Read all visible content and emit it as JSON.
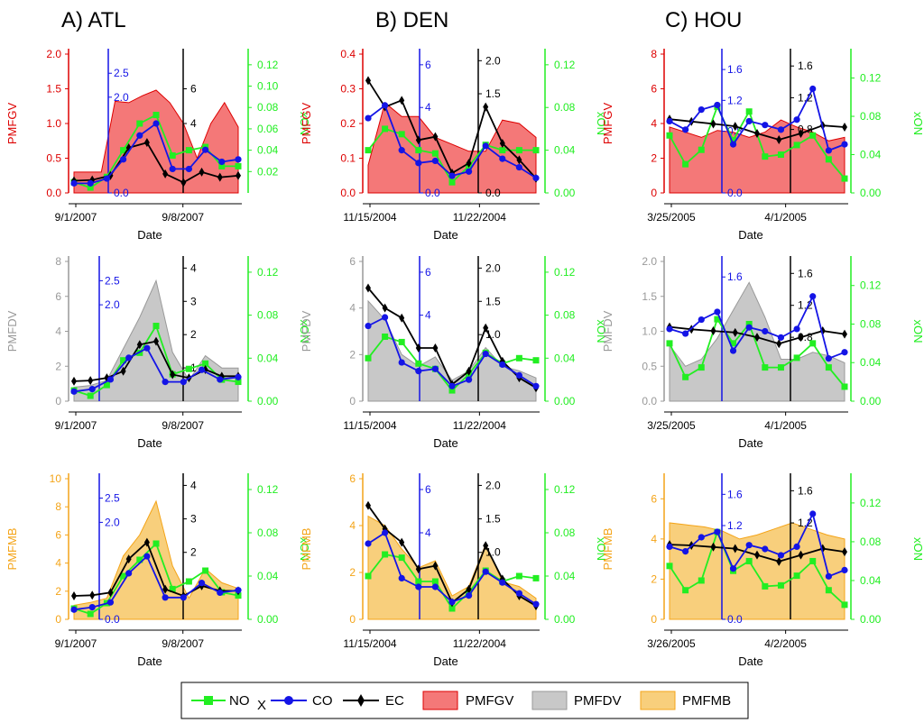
{
  "columns": [
    "A) ATL",
    "B) DEN",
    "C) HOU"
  ],
  "colors": {
    "nox": "#22ee22",
    "co": "#1414e6",
    "ec": "#000000",
    "pmfgv_fill": "#f47878",
    "pmfgv_line": "#dd0000",
    "pmfdv_fill": "#c8c8c8",
    "pmfdv_line": "#999999",
    "pmfmb_fill": "#f8cf7c",
    "pmfmb_line": "#f4a418"
  },
  "legend": {
    "nox": "NO",
    "nox_sub": "X",
    "co": "CO",
    "ec": "EC",
    "pmfgv": "PMFGV",
    "pmfdv": "PMFDV",
    "pmfmb": "PMFMB"
  },
  "chart_data": [
    {
      "type": "area",
      "panel": "ATL-PMFGV",
      "xlabel": "Date",
      "xticks": [
        "9/1/2007",
        "9/8/2007"
      ],
      "xlim": [
        0,
        10
      ],
      "series_name": "PMFGV",
      "ylabel": "PMFGV",
      "ylim": [
        0,
        2.0
      ],
      "yticks": [
        "0.0",
        "0.5",
        "1.0",
        "1.5",
        "2.0"
      ],
      "area": [
        0.3,
        0.3,
        0.3,
        1.32,
        1.3,
        1.4,
        1.48,
        1.3,
        1.0,
        0.5,
        1.0,
        1.3,
        0.95
      ],
      "co_axis": {
        "ylim": [
          0,
          2.9
        ],
        "yticks": [
          "0.0",
          "2.0",
          "2.5"
        ]
      },
      "ec_axis": {
        "ylim": [
          0,
          8
        ],
        "yticks": [
          "4",
          "6"
        ]
      },
      "nox_axis": {
        "ylim": [
          0,
          0.13
        ],
        "yticks": [
          "0.02",
          "0.04",
          "0.06",
          "0.08",
          "0.10",
          "0.12"
        ]
      },
      "ylabel_right": "xON",
      "co": [
        0.2,
        0.2,
        0.3,
        0.7,
        1.2,
        1.45,
        0.5,
        0.5,
        0.9,
        0.65,
        0.7
      ],
      "ec": [
        0.7,
        0.75,
        1.0,
        2.6,
        2.9,
        1.1,
        0.6,
        1.2,
        0.9,
        1.0
      ],
      "nox": [
        0.01,
        0.005,
        0.015,
        0.04,
        0.065,
        0.073,
        0.035,
        0.04,
        0.043,
        0.025,
        0.025
      ]
    },
    {
      "type": "area",
      "panel": "DEN-PMFGV",
      "xlabel": "Date",
      "xticks": [
        "11/15/2004",
        "11/22/2004"
      ],
      "xlim": [
        0,
        10
      ],
      "series_name": "PMFGV",
      "ylabel": "PMFGV",
      "ylim": [
        0,
        0.4
      ],
      "yticks": [
        "0.0",
        "0.1",
        "0.2",
        "0.3",
        "0.4"
      ],
      "area": [
        0.08,
        0.26,
        0.22,
        0.22,
        0.16,
        0.14,
        0.12,
        0.12,
        0.21,
        0.2,
        0.16
      ],
      "co_axis": {
        "ylim": [
          0,
          6.5
        ],
        "yticks": [
          "0.0",
          "4",
          "6"
        ]
      },
      "ec_axis": {
        "ylim": [
          0,
          2.1
        ],
        "yticks": [
          "0.0",
          "1.5",
          "2.0"
        ]
      },
      "nox_axis": {
        "ylim": [
          0,
          0.13
        ],
        "yticks": [
          "0.00",
          "0.04",
          "0.08",
          "0.12"
        ]
      },
      "ylabel_right": "xON",
      "co": [
        3.5,
        4.1,
        2.0,
        1.4,
        1.5,
        0.8,
        1.0,
        2.2,
        1.6,
        1.2,
        0.7
      ],
      "ec": [
        1.7,
        1.3,
        1.4,
        0.8,
        0.85,
        0.3,
        0.45,
        1.3,
        0.75,
        0.5,
        0.22
      ],
      "nox": [
        0.04,
        0.06,
        0.055,
        0.04,
        0.037,
        0.01,
        0.025,
        0.045,
        0.04,
        0.04,
        0.04
      ]
    },
    {
      "type": "area",
      "panel": "HOU-PMFGV",
      "xlabel": "Date",
      "xticks": [
        "3/25/2005",
        "4/1/2005"
      ],
      "xlim": [
        0,
        10
      ],
      "series_name": "PMFGV",
      "ylabel": "PMFGV",
      "ylim": [
        0,
        8
      ],
      "yticks": [
        "0",
        "2",
        "4",
        "6",
        "8"
      ],
      "area": [
        3.8,
        3.5,
        3.2,
        3.6,
        3.5,
        3.2,
        3.5,
        4.2,
        3.8,
        3.5,
        3.0,
        3.2
      ],
      "co_axis": {
        "ylim": [
          0,
          1.8
        ],
        "yticks": [
          "0.0",
          "0.8",
          "1.2",
          "1.6"
        ]
      },
      "ec_axis": {
        "ylim": [
          0,
          1.75
        ],
        "yticks": [
          "0.8",
          "1.2",
          "1.6"
        ]
      },
      "nox_axis": {
        "ylim": [
          0,
          0.145
        ],
        "yticks": [
          "0.00",
          "0.04",
          "0.08",
          "0.12"
        ]
      },
      "ylabel_right": "xON",
      "co": [
        0.93,
        0.82,
        1.08,
        1.14,
        0.63,
        0.93,
        0.88,
        0.82,
        0.95,
        1.35,
        0.55,
        0.63
      ],
      "ec": [
        0.93,
        0.9,
        0.87,
        0.84,
        0.75,
        0.67,
        0.75,
        0.85,
        0.83
      ],
      "nox": [
        0.06,
        0.03,
        0.045,
        0.09,
        0.055,
        0.085,
        0.038,
        0.04,
        0.05,
        0.06,
        0.035,
        0.015
      ]
    },
    {
      "type": "area",
      "panel": "ATL-PMFDV",
      "xlabel": "Date",
      "xticks": [
        "9/1/2007",
        "9/8/2007"
      ],
      "xlim": [
        0,
        10
      ],
      "series_name": "PMFDV",
      "ylabel": "PMFDV",
      "ylim": [
        0,
        8
      ],
      "yticks": [
        "0",
        "2",
        "4",
        "6",
        "8"
      ],
      "area": [
        0.8,
        0.9,
        1.2,
        3.0,
        4.8,
        6.9,
        2.8,
        1.2,
        2.6,
        1.9,
        1.9
      ],
      "co_axis": {
        "ylim": [
          0,
          2.9
        ],
        "yticks": [
          "2.0",
          "2.5"
        ]
      },
      "ec_axis": {
        "ylim": [
          0,
          4.2
        ],
        "yticks": [
          "1",
          "2",
          "3",
          "4"
        ]
      },
      "nox_axis": {
        "ylim": [
          0,
          0.13
        ],
        "yticks": [
          "0.00",
          "0.04",
          "0.08",
          "0.12"
        ]
      },
      "ylabel_right": "xON",
      "co": [
        0.2,
        0.25,
        0.45,
        0.9,
        1.1,
        0.4,
        0.4,
        0.65,
        0.45,
        0.5
      ],
      "ec": [
        0.6,
        0.62,
        0.7,
        0.9,
        1.7,
        1.8,
        0.8,
        0.7,
        0.95,
        0.75,
        0.75
      ],
      "nox": [
        0.01,
        0.005,
        0.015,
        0.038,
        0.045,
        0.07,
        0.025,
        0.03,
        0.035,
        0.02,
        0.018
      ]
    },
    {
      "type": "area",
      "panel": "DEN-PMFDV",
      "xlabel": "Date",
      "xticks": [
        "11/15/2004",
        "11/22/2004"
      ],
      "xlim": [
        0,
        10
      ],
      "series_name": "PMFDV",
      "ylabel": "PMFDV",
      "ylim": [
        0,
        6
      ],
      "yticks": [
        "0",
        "2",
        "4",
        "6"
      ],
      "area": [
        4.3,
        3.5,
        2.0,
        1.5,
        1.9,
        0.9,
        1.3,
        2.3,
        1.5,
        1.3,
        1.0
      ],
      "co_axis": {
        "ylim": [
          0,
          6.5
        ],
        "yticks": [
          "4",
          "6"
        ]
      },
      "ec_axis": {
        "ylim": [
          0,
          2.1
        ],
        "yticks": [
          "1.0",
          "1.5",
          "2.0"
        ]
      },
      "nox_axis": {
        "ylim": [
          0,
          0.13
        ],
        "yticks": [
          "0.00",
          "0.04",
          "0.08",
          "0.12"
        ]
      },
      "ylabel_right": "xON",
      "co": [
        3.5,
        3.9,
        1.8,
        1.4,
        1.5,
        0.7,
        1.0,
        2.2,
        1.7,
        1.2,
        0.7
      ],
      "ec": [
        1.7,
        1.4,
        1.25,
        0.8,
        0.8,
        0.25,
        0.45,
        1.1,
        0.6,
        0.35,
        0.2
      ],
      "nox": [
        0.04,
        0.06,
        0.055,
        0.035,
        0.03,
        0.01,
        0.025,
        0.045,
        0.035,
        0.04,
        0.038
      ]
    },
    {
      "type": "area",
      "panel": "HOU-PMFDV",
      "xlabel": "Date",
      "xticks": [
        "3/25/2005",
        "4/1/2005"
      ],
      "xlim": [
        0,
        10
      ],
      "series_name": "PMFDV",
      "ylabel": "PMFDV",
      "ylim": [
        0,
        2.0
      ],
      "yticks": [
        "0.0",
        "0.5",
        "1.0",
        "1.5",
        "2.0"
      ],
      "area": [
        0.8,
        0.5,
        0.6,
        0.9,
        1.3,
        1.7,
        1.2,
        0.6,
        0.6,
        0.7,
        0.65,
        0.55
      ],
      "co_axis": {
        "ylim": [
          0,
          1.8
        ],
        "yticks": [
          "1.6"
        ]
      },
      "ec_axis": {
        "ylim": [
          0,
          1.75
        ],
        "yticks": [
          "0.8",
          "1.2",
          "1.6"
        ]
      },
      "nox_axis": {
        "ylim": [
          0,
          0.145
        ],
        "yticks": [
          "0.00",
          "0.04",
          "0.08",
          "0.12"
        ]
      },
      "ylabel_right": "xON",
      "co": [
        0.93,
        0.87,
        1.05,
        1.15,
        0.65,
        0.95,
        0.9,
        0.82,
        0.93,
        1.35,
        0.55,
        0.63
      ],
      "ec": [
        0.93,
        0.9,
        0.88,
        0.86,
        0.8,
        0.72,
        0.8,
        0.88,
        0.84
      ],
      "nox": [
        0.06,
        0.025,
        0.035,
        0.085,
        0.06,
        0.08,
        0.035,
        0.035,
        0.045,
        0.06,
        0.035,
        0.015
      ]
    },
    {
      "type": "area",
      "panel": "ATL-PMFMB",
      "xlabel": "Date",
      "xticks": [
        "9/1/2007",
        "9/8/2007"
      ],
      "xlim": [
        0,
        10
      ],
      "series_name": "PMFMB",
      "ylabel": "PMFMB",
      "ylim": [
        0,
        10
      ],
      "yticks": [
        "0",
        "2",
        "4",
        "6",
        "8",
        "10"
      ],
      "area": [
        1.0,
        1.2,
        1.5,
        4.5,
        6.0,
        8.4,
        3.8,
        1.5,
        3.6,
        2.6,
        2.2
      ],
      "co_axis": {
        "ylim": [
          0,
          2.9
        ],
        "yticks": [
          "0.0",
          "2.0",
          "2.5"
        ]
      },
      "ec_axis": {
        "ylim": [
          0,
          4.2
        ],
        "yticks": [
          "2",
          "3",
          "4"
        ]
      },
      "nox_axis": {
        "ylim": [
          0,
          0.13
        ],
        "yticks": [
          "0.00",
          "0.04",
          "0.08",
          "0.12"
        ]
      },
      "ylabel_right": "xON",
      "co": [
        0.2,
        0.25,
        0.35,
        0.95,
        1.3,
        0.45,
        0.45,
        0.75,
        0.55,
        0.6
      ],
      "ec": [
        0.7,
        0.72,
        0.8,
        1.8,
        2.3,
        0.9,
        0.7,
        1.0,
        0.85,
        0.85
      ],
      "nox": [
        0.01,
        0.005,
        0.015,
        0.04,
        0.055,
        0.07,
        0.028,
        0.035,
        0.045,
        0.025,
        0.022
      ]
    },
    {
      "type": "area",
      "panel": "DEN-PMFMB",
      "xlabel": "Date",
      "xticks": [
        "11/15/2004",
        "11/22/2004"
      ],
      "xlim": [
        0,
        10
      ],
      "series_name": "PMFMB",
      "ylabel": "PMFMB",
      "ylim": [
        0,
        6
      ],
      "yticks": [
        "0",
        "2",
        "4",
        "6"
      ],
      "area": [
        4.4,
        4.0,
        3.0,
        2.2,
        2.5,
        1.0,
        1.4,
        3.2,
        1.6,
        1.4,
        0.9
      ],
      "co_axis": {
        "ylim": [
          0,
          6.5
        ],
        "yticks": [
          "4",
          "6"
        ]
      },
      "ec_axis": {
        "ylim": [
          0,
          2.1
        ],
        "yticks": [
          "1.0",
          "1.5",
          "2.0"
        ]
      },
      "nox_axis": {
        "ylim": [
          0,
          0.13
        ],
        "yticks": [
          "0.00",
          "0.04",
          "0.08",
          "0.12"
        ]
      },
      "ylabel_right": "xON",
      "co": [
        3.5,
        4.0,
        1.9,
        1.5,
        1.5,
        0.8,
        1.1,
        2.2,
        1.7,
        1.2,
        0.7
      ],
      "ec": [
        1.7,
        1.35,
        1.15,
        0.75,
        0.8,
        0.25,
        0.45,
        1.1,
        0.6,
        0.35,
        0.2
      ],
      "nox": [
        0.04,
        0.06,
        0.057,
        0.035,
        0.035,
        0.01,
        0.025,
        0.045,
        0.035,
        0.04,
        0.038
      ]
    },
    {
      "type": "area",
      "panel": "HOU-PMFMB",
      "xlabel": "Date",
      "xticks": [
        "3/26/2005",
        "4/2/2005"
      ],
      "xlim": [
        0,
        10
      ],
      "series_name": "PMFMB",
      "ylabel": "PMFMB",
      "ylim": [
        0,
        7
      ],
      "yticks": [
        "0",
        "2",
        "4",
        "6"
      ],
      "area": [
        4.8,
        4.7,
        4.6,
        4.4,
        4.0,
        4.2,
        4.5,
        4.8,
        4.5,
        4.2,
        4.0
      ],
      "co_axis": {
        "ylim": [
          0,
          1.8
        ],
        "yticks": [
          "0.0",
          "1.2",
          "1.6"
        ]
      },
      "ec_axis": {
        "ylim": [
          0,
          1.75
        ],
        "yticks": [
          "1.2",
          "1.6"
        ]
      },
      "nox_axis": {
        "ylim": [
          0,
          0.145
        ],
        "yticks": [
          "0.00",
          "0.04",
          "0.08",
          "0.12"
        ]
      },
      "ylabel_right": "xON",
      "co": [
        0.93,
        0.87,
        1.05,
        1.12,
        0.65,
        0.95,
        0.9,
        0.82,
        0.93,
        1.35,
        0.55,
        0.63
      ],
      "ec": [
        0.93,
        0.92,
        0.9,
        0.88,
        0.8,
        0.72,
        0.8,
        0.88,
        0.84
      ],
      "nox": [
        0.055,
        0.03,
        0.04,
        0.09,
        0.05,
        0.06,
        0.034,
        0.035,
        0.045,
        0.06,
        0.03,
        0.015
      ]
    }
  ]
}
